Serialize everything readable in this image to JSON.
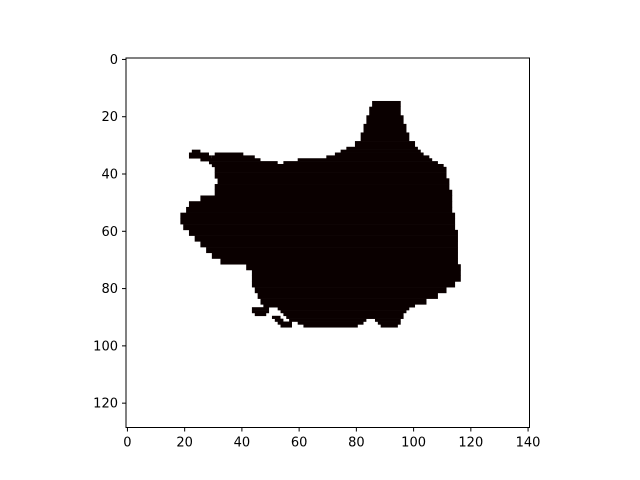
{
  "chart_data": {
    "type": "heatmap",
    "title": "",
    "xlabel": "",
    "ylabel": "",
    "xlim": [
      -0.5,
      140.5
    ],
    "ylim": [
      128.5,
      -0.5
    ],
    "x_ticks": [
      0,
      20,
      40,
      60,
      80,
      100,
      120,
      140
    ],
    "y_ticks": [
      0,
      20,
      40,
      60,
      80,
      100,
      120
    ],
    "x_tick_labels": [
      "0",
      "20",
      "40",
      "60",
      "80",
      "100",
      "120",
      "140"
    ],
    "y_tick_labels": [
      "0",
      "20",
      "40",
      "60",
      "80",
      "100",
      "120"
    ],
    "colormap": {
      "0": "#ffffff",
      "1": "#0a0000"
    },
    "mask_rows": [
      {
        "y": 15,
        "spans": [
          [
            86,
            95
          ]
        ]
      },
      {
        "y": 17,
        "spans": [
          [
            85,
            95
          ]
        ]
      },
      {
        "y": 20,
        "spans": [
          [
            84,
            96
          ]
        ]
      },
      {
        "y": 23,
        "spans": [
          [
            83,
            97
          ]
        ]
      },
      {
        "y": 26,
        "spans": [
          [
            82,
            98
          ]
        ]
      },
      {
        "y": 29,
        "spans": [
          [
            80,
            100
          ]
        ]
      },
      {
        "y": 31,
        "spans": [
          [
            77,
            101
          ]
        ]
      },
      {
        "y": 32,
        "spans": [
          [
            23,
            25
          ],
          [
            75,
            102
          ]
        ]
      },
      {
        "y": 33,
        "spans": [
          [
            22,
            28
          ],
          [
            31,
            40
          ],
          [
            73,
            103
          ]
        ]
      },
      {
        "y": 34,
        "spans": [
          [
            22,
            29
          ],
          [
            30,
            44
          ],
          [
            70,
            105
          ]
        ]
      },
      {
        "y": 35,
        "spans": [
          [
            26,
            46
          ],
          [
            60,
            106
          ]
        ]
      },
      {
        "y": 36,
        "spans": [
          [
            29,
            52
          ],
          [
            55,
            108
          ]
        ]
      },
      {
        "y": 37,
        "spans": [
          [
            30,
            110
          ]
        ]
      },
      {
        "y": 38,
        "spans": [
          [
            31,
            111
          ]
        ]
      },
      {
        "y": 40,
        "spans": [
          [
            31,
            111
          ]
        ]
      },
      {
        "y": 42,
        "spans": [
          [
            32,
            112
          ]
        ]
      },
      {
        "y": 44,
        "spans": [
          [
            31,
            112
          ]
        ]
      },
      {
        "y": 46,
        "spans": [
          [
            31,
            113
          ]
        ]
      },
      {
        "y": 48,
        "spans": [
          [
            26,
            113
          ]
        ]
      },
      {
        "y": 50,
        "spans": [
          [
            22,
            113
          ]
        ]
      },
      {
        "y": 52,
        "spans": [
          [
            21,
            113
          ]
        ]
      },
      {
        "y": 54,
        "spans": [
          [
            19,
            114
          ]
        ]
      },
      {
        "y": 56,
        "spans": [
          [
            19,
            114
          ]
        ]
      },
      {
        "y": 58,
        "spans": [
          [
            20,
            114
          ]
        ]
      },
      {
        "y": 60,
        "spans": [
          [
            22,
            115
          ]
        ]
      },
      {
        "y": 62,
        "spans": [
          [
            24,
            115
          ]
        ]
      },
      {
        "y": 64,
        "spans": [
          [
            26,
            115
          ]
        ]
      },
      {
        "y": 66,
        "spans": [
          [
            28,
            115
          ]
        ]
      },
      {
        "y": 68,
        "spans": [
          [
            30,
            115
          ]
        ]
      },
      {
        "y": 70,
        "spans": [
          [
            33,
            115
          ]
        ]
      },
      {
        "y": 72,
        "spans": [
          [
            42,
            116
          ]
        ]
      },
      {
        "y": 74,
        "spans": [
          [
            44,
            116
          ]
        ]
      },
      {
        "y": 76,
        "spans": [
          [
            44,
            116
          ]
        ]
      },
      {
        "y": 78,
        "spans": [
          [
            44,
            114
          ]
        ]
      },
      {
        "y": 80,
        "spans": [
          [
            45,
            111
          ]
        ]
      },
      {
        "y": 82,
        "spans": [
          [
            46,
            108
          ]
        ]
      },
      {
        "y": 84,
        "spans": [
          [
            47,
            104
          ]
        ]
      },
      {
        "y": 86,
        "spans": [
          [
            48,
            100
          ]
        ]
      },
      {
        "y": 87,
        "spans": [
          [
            44,
            49
          ],
          [
            53,
            98
          ]
        ]
      },
      {
        "y": 88,
        "spans": [
          [
            44,
            49
          ],
          [
            54,
            97
          ]
        ]
      },
      {
        "y": 89,
        "spans": [
          [
            45,
            48
          ],
          [
            55,
            96
          ]
        ]
      },
      {
        "y": 90,
        "spans": [
          [
            51,
            53
          ],
          [
            56,
            96
          ]
        ]
      },
      {
        "y": 91,
        "spans": [
          [
            52,
            54
          ],
          [
            57,
            83
          ],
          [
            87,
            95
          ]
        ]
      },
      {
        "y": 92,
        "spans": [
          [
            53,
            57
          ],
          [
            60,
            82
          ],
          [
            88,
            95
          ]
        ]
      },
      {
        "y": 93,
        "spans": [
          [
            54,
            57
          ],
          [
            62,
            80
          ],
          [
            89,
            94
          ]
        ]
      }
    ]
  }
}
